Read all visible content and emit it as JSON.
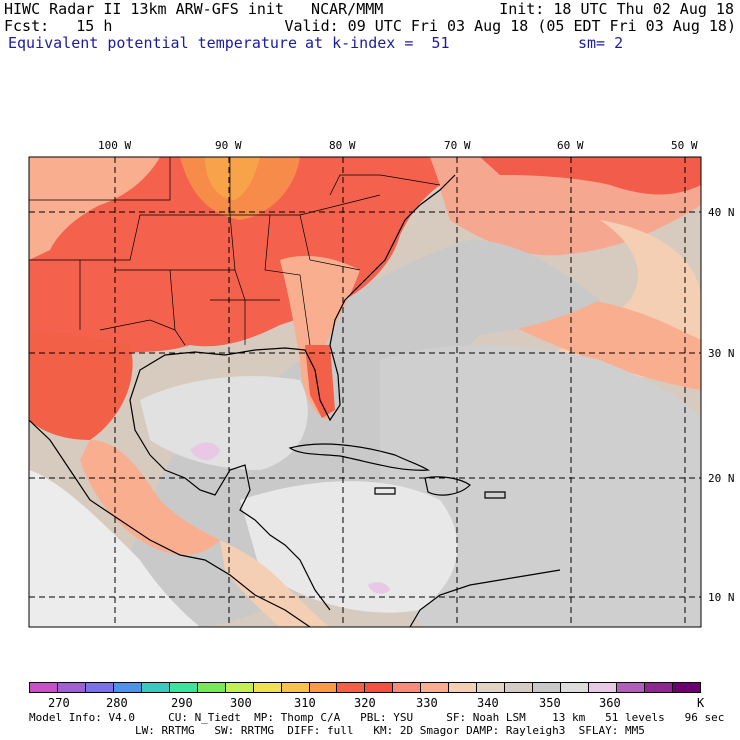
{
  "header": {
    "line1_left": "HIWC Radar II 13km ARW-GFS init   NCAR/MMM",
    "line1_right": "Init: 18 UTC Thu 02 Aug 18",
    "line2_left": "Fcst:   15 h",
    "line2_right": "Valid: 09 UTC Fri 03 Aug 18 (05 EDT Fri 03 Aug 18)",
    "field_name": "Equivalent potential temperature",
    "level": "at k-index =  51",
    "smoothing": "sm= 2"
  },
  "map": {
    "lon_labels": [
      "100 W",
      "90 W",
      "80 W",
      "70 W",
      "60 W",
      "50 W"
    ],
    "lat_labels": [
      "40 N",
      "30 N",
      "20 N",
      "10 N"
    ],
    "grid": "dashed lat/lon lines every 10 degrees"
  },
  "colorbar": {
    "colors": [
      "#c84fc8",
      "#a060d2",
      "#7a72e6",
      "#4f93e8",
      "#3cc9c0",
      "#3de29e",
      "#78e85a",
      "#c3ef52",
      "#f0e054",
      "#f8c04c",
      "#f89a48",
      "#f36048",
      "#f25242",
      "#f98b7a",
      "#f9ae90",
      "#f5cfb3",
      "#e2d3c3",
      "#d4ccc2",
      "#c8c8c8",
      "#dcdcdc",
      "#e8c8e4",
      "#b060b8",
      "#8c2890",
      "#6c0070"
    ],
    "ticks": [
      "270",
      "280",
      "290",
      "300",
      "310",
      "320",
      "330",
      "340",
      "350",
      "360",
      "K"
    ]
  },
  "footer": {
    "line1": "Model Info: V4.0     CU: N_Tiedt  MP: Thomp C/A   PBL: YSU     SF: Noah LSM    13 km   51 levels   96 sec",
    "line2": "                LW: RRTMG   SW: RRTMG  DIFF: full   KM: 2D Smagor DAMP: Rayleigh3  SFLAY: MM5"
  }
}
